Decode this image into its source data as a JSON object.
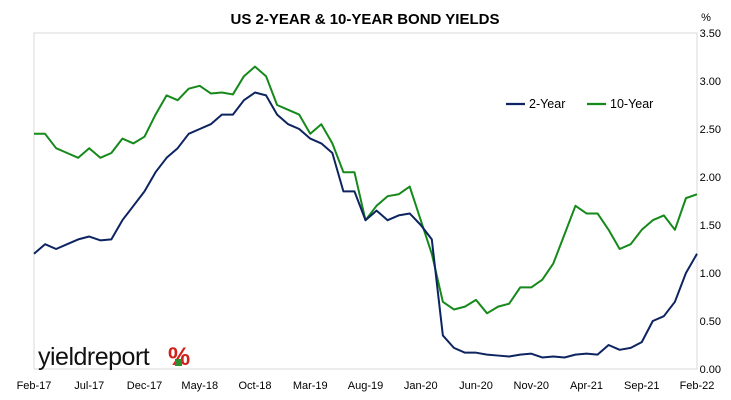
{
  "chart_data": {
    "type": "line",
    "title": "US 2-YEAR & 10-YEAR BOND YIELDS",
    "y_unit": "%",
    "ylim": [
      0,
      3.5
    ],
    "y_ticks": [
      "0.00",
      "0.50",
      "1.00",
      "1.50",
      "2.00",
      "2.50",
      "3.00",
      "3.50"
    ],
    "x_tick_labels": [
      "Feb-17",
      "Jul-17",
      "Dec-17",
      "May-18",
      "Oct-18",
      "Mar-19",
      "Aug-19",
      "Jan-20",
      "Jun-20",
      "Nov-20",
      "Apr-21",
      "Sep-21",
      "Feb-22"
    ],
    "grid": false,
    "legend_position": "top-right",
    "x_dates": [
      "2017-02",
      "2017-03",
      "2017-04",
      "2017-05",
      "2017-06",
      "2017-07",
      "2017-08",
      "2017-09",
      "2017-10",
      "2017-11",
      "2017-12",
      "2018-01",
      "2018-02",
      "2018-03",
      "2018-04",
      "2018-05",
      "2018-06",
      "2018-07",
      "2018-08",
      "2018-09",
      "2018-10",
      "2018-11",
      "2018-12",
      "2019-01",
      "2019-02",
      "2019-03",
      "2019-04",
      "2019-05",
      "2019-06",
      "2019-07",
      "2019-08",
      "2019-09",
      "2019-10",
      "2019-11",
      "2019-12",
      "2020-01",
      "2020-02",
      "2020-03",
      "2020-04",
      "2020-05",
      "2020-06",
      "2020-07",
      "2020-08",
      "2020-09",
      "2020-10",
      "2020-11",
      "2020-12",
      "2021-01",
      "2021-02",
      "2021-03",
      "2021-04",
      "2021-05",
      "2021-06",
      "2021-07",
      "2021-08",
      "2021-09",
      "2021-10",
      "2021-11",
      "2021-12",
      "2022-01",
      "2022-02"
    ],
    "series": [
      {
        "name": "2-Year",
        "color": "#0d2461",
        "values": [
          1.2,
          1.3,
          1.25,
          1.3,
          1.35,
          1.38,
          1.34,
          1.35,
          1.55,
          1.7,
          1.85,
          2.05,
          2.2,
          2.3,
          2.45,
          2.5,
          2.55,
          2.65,
          2.65,
          2.8,
          2.88,
          2.85,
          2.65,
          2.55,
          2.5,
          2.4,
          2.35,
          2.25,
          1.85,
          1.85,
          1.55,
          1.65,
          1.55,
          1.6,
          1.62,
          1.5,
          1.35,
          0.35,
          0.22,
          0.17,
          0.17,
          0.15,
          0.14,
          0.13,
          0.15,
          0.16,
          0.12,
          0.13,
          0.12,
          0.15,
          0.16,
          0.15,
          0.25,
          0.2,
          0.22,
          0.28,
          0.5,
          0.55,
          0.7,
          1.0,
          1.2
        ]
      },
      {
        "name": "10-Year",
        "color": "#15891a",
        "values": [
          2.45,
          2.45,
          2.3,
          2.25,
          2.2,
          2.3,
          2.2,
          2.25,
          2.4,
          2.35,
          2.42,
          2.65,
          2.85,
          2.8,
          2.92,
          2.95,
          2.87,
          2.88,
          2.86,
          3.05,
          3.15,
          3.05,
          2.75,
          2.7,
          2.65,
          2.45,
          2.55,
          2.35,
          2.05,
          2.05,
          1.55,
          1.7,
          1.8,
          1.82,
          1.9,
          1.55,
          1.2,
          0.7,
          0.62,
          0.65,
          0.72,
          0.58,
          0.65,
          0.68,
          0.85,
          0.85,
          0.93,
          1.1,
          1.4,
          1.7,
          1.62,
          1.62,
          1.45,
          1.25,
          1.3,
          1.45,
          1.55,
          1.6,
          1.45,
          1.78,
          1.82
        ]
      }
    ]
  },
  "logo": {
    "text": "yieldreport",
    "symbol": "%",
    "colors": {
      "text": "#111111",
      "accent_red": "#d0211c",
      "accent_green": "#2e8b2e"
    }
  }
}
